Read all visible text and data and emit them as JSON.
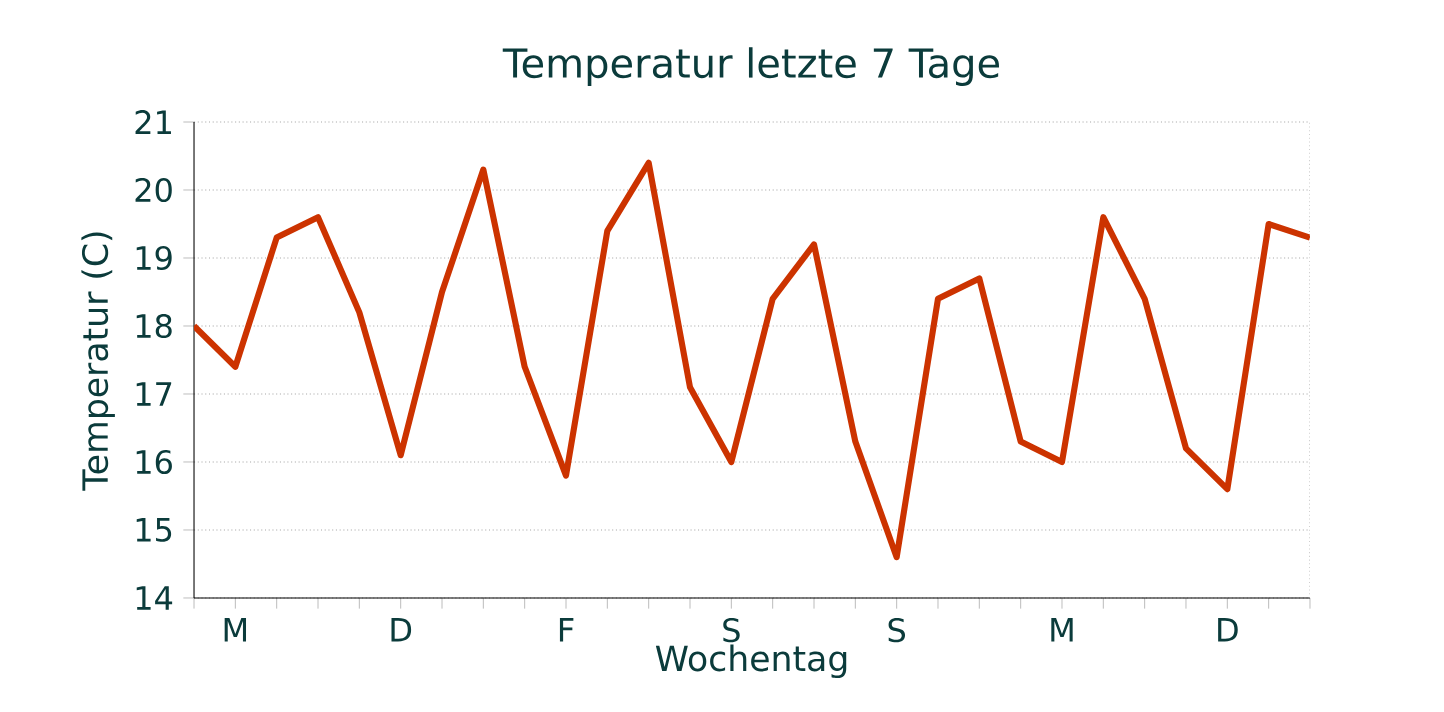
{
  "chart_data": {
    "type": "line",
    "title": "Temperatur letzte 7 Tage",
    "xlabel": "Wochentag",
    "ylabel": "Temperatur (C)",
    "categories": [
      null,
      "M",
      null,
      null,
      null,
      "D",
      null,
      null,
      null,
      "F",
      null,
      null,
      null,
      "S",
      null,
      null,
      null,
      "S",
      null,
      null,
      null,
      "M",
      null,
      null,
      null,
      "D",
      null,
      null
    ],
    "values": [
      18.0,
      17.4,
      19.3,
      19.6,
      18.2,
      16.1,
      18.5,
      20.3,
      17.4,
      15.8,
      19.4,
      20.4,
      17.1,
      16.0,
      18.4,
      19.2,
      16.3,
      14.6,
      18.4,
      18.7,
      16.3,
      16.0,
      19.6,
      18.4,
      16.2,
      15.6,
      19.5,
      19.3
    ],
    "color": "#cc3300",
    "ylim": [
      14,
      21
    ],
    "yticks": [
      14,
      15,
      16,
      17,
      18,
      19,
      20,
      21
    ],
    "grid": "y",
    "marker": "none",
    "line_style": "solid"
  }
}
